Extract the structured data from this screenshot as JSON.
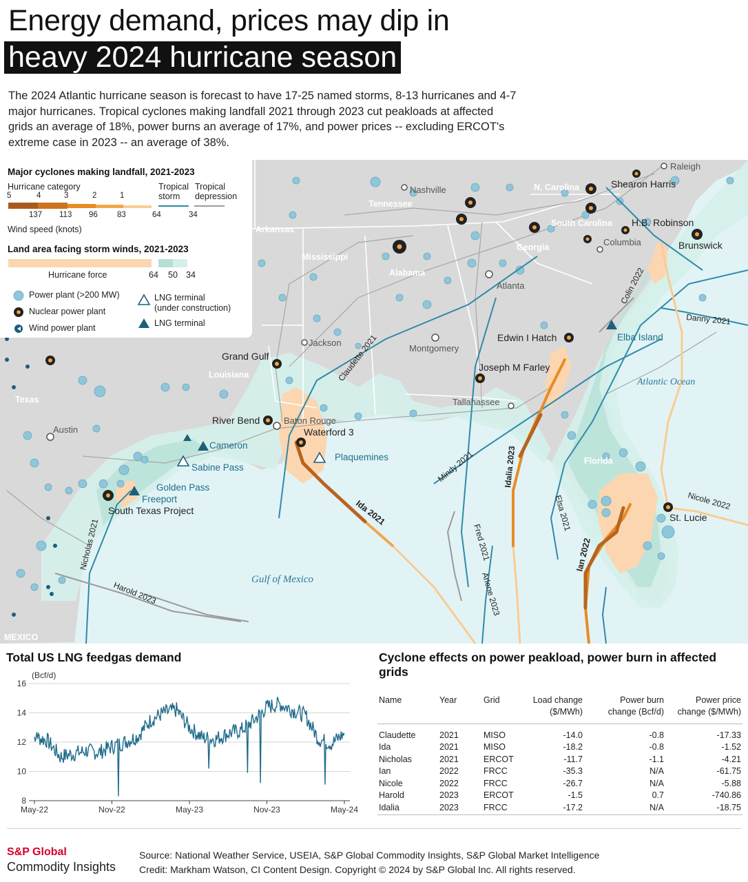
{
  "title": {
    "line1": "Energy demand, prices may dip in",
    "line2": "heavy 2024 hurricane season"
  },
  "intro": "The 2024 Atlantic hurricane season is forecast to have 17-25 named storms, 8-13 hurricanes and 4-7 major hurricanes. Tropical cyclones making landfall 2021 through 2023 cut peakloads at affected grids an average of 18%, power burns an average of 17%, and power prices -- excluding ERCOT's extreme case in 2023 -- an average of 38%.",
  "legend": {
    "cyclones_heading": "Major cyclones making landfall, 2021-2023",
    "category_label": "Hurricane category",
    "tropical_storm": "Tropical storm",
    "tropical_depression": "Tropical depression",
    "categories": [
      "5",
      "4",
      "3",
      "2",
      "1"
    ],
    "speeds": [
      "137",
      "113",
      "96",
      "83",
      "64",
      "34"
    ],
    "speed_unit": "Wind speed (knots)",
    "land_heading": "Land area facing storm winds, 2021-2023",
    "hurricane_force": "Hurricane force",
    "land_speeds": [
      "64",
      "50",
      "34"
    ],
    "items": [
      {
        "label": "Power plant (>200 MW)",
        "icon": "power-plant-circle"
      },
      {
        "label": "Nuclear power plant",
        "icon": "nuclear-icon"
      },
      {
        "label": "Wind power plant",
        "icon": "wind-icon"
      },
      {
        "label": "LNG terminal (under construction)",
        "icon": "lng-outline-icon"
      },
      {
        "label": "LNG terminal",
        "icon": "lng-icon"
      }
    ],
    "lng_uc_line1": "LNG terminal",
    "lng_uc_line2": "(under construction)",
    "colors": {
      "cat5": "#a85a1e",
      "cat4": "#cc7420",
      "cat3": "#e98a24",
      "cat2": "#f2a74a",
      "cat1": "#f9cc92",
      "storm": "#2f8aa8",
      "depression": "#9a9a9a",
      "force_hurricane": "#fbd6b0",
      "force_50": "#b5e0d6",
      "force_34": "#d5efeb"
    }
  },
  "map": {
    "states": [
      "Tennessee",
      "N. Carolina",
      "Arkansas",
      "South Carolina",
      "Mississippi",
      "Georgia",
      "Alabama",
      "Louisiana",
      "Texas",
      "Florida"
    ],
    "cities": [
      "Raleigh",
      "Nashville",
      "Columbia",
      "Atlanta",
      "Jackson",
      "Montgomery",
      "Baton Rouge",
      "Tallahassee",
      "Austin"
    ],
    "nuclear_plants": [
      "Shearon Harris",
      "H.B. Robinson",
      "Brunswick",
      "Edwin I Hatch",
      "Grand Gulf",
      "Joseph M Farley",
      "River Bend",
      "Waterford 3",
      "South Texas Project",
      "St. Lucie"
    ],
    "lng_terminals": [
      "Elba Island",
      "Cameron",
      "Sabine Pass",
      "Freeport",
      "Plaquemines"
    ],
    "lng_under_construction": [
      "Golden Pass"
    ],
    "water": [
      "Atlantic Ocean",
      "Gulf of Mexico"
    ],
    "country": "MEXICO",
    "storms": [
      "Colin 2022",
      "Danny 2021",
      "Claudette 2021",
      "Mindy 2021",
      "Idalia 2023",
      "Elsa 2021",
      "Nicole 2022",
      "Ida 2021",
      "Ian 2022",
      "Fred 2021",
      "Arlene 2023",
      "Nicholas 2021",
      "Harold 2023"
    ]
  },
  "lng_chart": {
    "heading": "Total US LNG feedgas demand",
    "unit": "(Bcf/d)"
  },
  "chart_data": {
    "type": "line",
    "title": "Total US LNG feedgas demand",
    "ylabel": "(Bcf/d)",
    "ylim": [
      8,
      16
    ],
    "yticks": [
      8,
      10,
      12,
      14,
      16
    ],
    "xticks": [
      "May-22",
      "Nov-22",
      "May-23",
      "Nov-23",
      "May-24"
    ],
    "x": [
      "2022-05",
      "2022-06",
      "2022-07",
      "2022-08",
      "2022-09",
      "2022-10",
      "2022-11",
      "2022-12",
      "2023-01",
      "2023-02",
      "2023-03",
      "2023-04",
      "2023-05",
      "2023-06",
      "2023-07",
      "2023-08",
      "2023-09",
      "2023-10",
      "2023-11",
      "2023-12",
      "2024-01",
      "2024-02",
      "2024-03",
      "2024-04",
      "2024-05"
    ],
    "series": [
      {
        "values": [
          12.4,
          12.1,
          11.0,
          11.2,
          11.4,
          11.3,
          11.7,
          12.0,
          12.4,
          13.5,
          14.0,
          14.2,
          13.0,
          12.3,
          12.2,
          12.6,
          12.8,
          13.5,
          14.4,
          14.6,
          14.2,
          13.8,
          12.2,
          11.9,
          12.6
        ]
      }
    ],
    "color": "#1e6b8a"
  },
  "table": {
    "heading": "Cyclone effects on power peakload, power burn in affected grids",
    "columns": [
      "Name",
      "Year",
      "Grid",
      "Load change ($/MWh)",
      "Power burn change (Bcf/d)",
      "Power price change ($/MWh)"
    ],
    "col_top": [
      "Name",
      "Year",
      "Grid",
      "Load change",
      "Power burn",
      "Power price"
    ],
    "col_bottom": [
      "",
      "",
      "",
      "($/MWh)",
      "change (Bcf/d)",
      "change ($/MWh)"
    ],
    "rows": [
      [
        "Claudette",
        "2021",
        "MISO",
        "-14.0",
        "-0.8",
        "-17.33"
      ],
      [
        "Ida",
        "2021",
        "MISO",
        "-18.2",
        "-0.8",
        "-1.52"
      ],
      [
        "Nicholas",
        "2021",
        "ERCOT",
        "-11.7",
        "-1.1",
        "-4.21"
      ],
      [
        "Ian",
        "2022",
        "FRCC",
        "-35.3",
        "N/A",
        "-61.75"
      ],
      [
        "Nicole",
        "2022",
        "FRCC",
        "-26.7",
        "N/A",
        "-5.88"
      ],
      [
        "Harold",
        "2023",
        "ERCOT",
        "-1.5",
        "0.7",
        "-740.86"
      ],
      [
        "Idalia",
        "2023",
        "FRCC",
        "-17.2",
        "N/A",
        "-18.75"
      ]
    ]
  },
  "footer": {
    "brand_line1": "S&P Global",
    "brand_line2": "Commodity Insights",
    "source": "Source: National Weather Service, USEIA, S&P Global Commodity Insights, S&P Global Market Intelligence",
    "credit": "Credit: Markham Watson, CI Content Design.  Copyright © 2024 by S&P Global Inc.  All rights reserved."
  }
}
